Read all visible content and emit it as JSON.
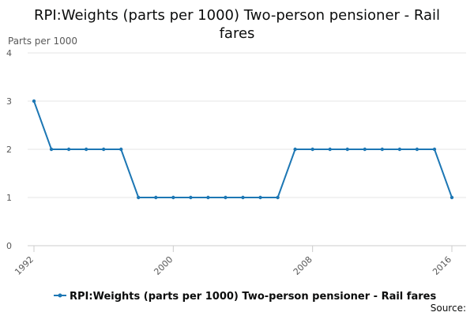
{
  "chart_data": {
    "type": "line",
    "title_lines": [
      "RPI:Weights (parts per 1000) Two-person pensioner - Rail",
      "fares"
    ],
    "ylabel": "Parts per 1000",
    "xlabel": "",
    "x": [
      1992,
      1993,
      1994,
      1995,
      1996,
      1997,
      1998,
      1999,
      2000,
      2001,
      2002,
      2003,
      2004,
      2005,
      2006,
      2007,
      2008,
      2009,
      2010,
      2011,
      2012,
      2013,
      2014,
      2015,
      2016
    ],
    "xlim": [
      1992,
      2016
    ],
    "ylim": [
      0,
      4
    ],
    "yticks": [
      0,
      1,
      2,
      3,
      4
    ],
    "xticks": [
      1992,
      2000,
      2008,
      2016
    ],
    "grid": true,
    "legend_position": "bottom",
    "series": [
      {
        "name": "RPI:Weights (parts per 1000) Two-person pensioner - Rail fares",
        "color": "#1d77b4",
        "values": [
          3,
          2,
          2,
          2,
          2,
          2,
          1,
          1,
          1,
          1,
          1,
          1,
          1,
          1,
          1,
          2,
          2,
          2,
          2,
          2,
          2,
          2,
          2,
          2,
          1
        ]
      }
    ]
  },
  "footer": {
    "source_label": "Source:"
  }
}
